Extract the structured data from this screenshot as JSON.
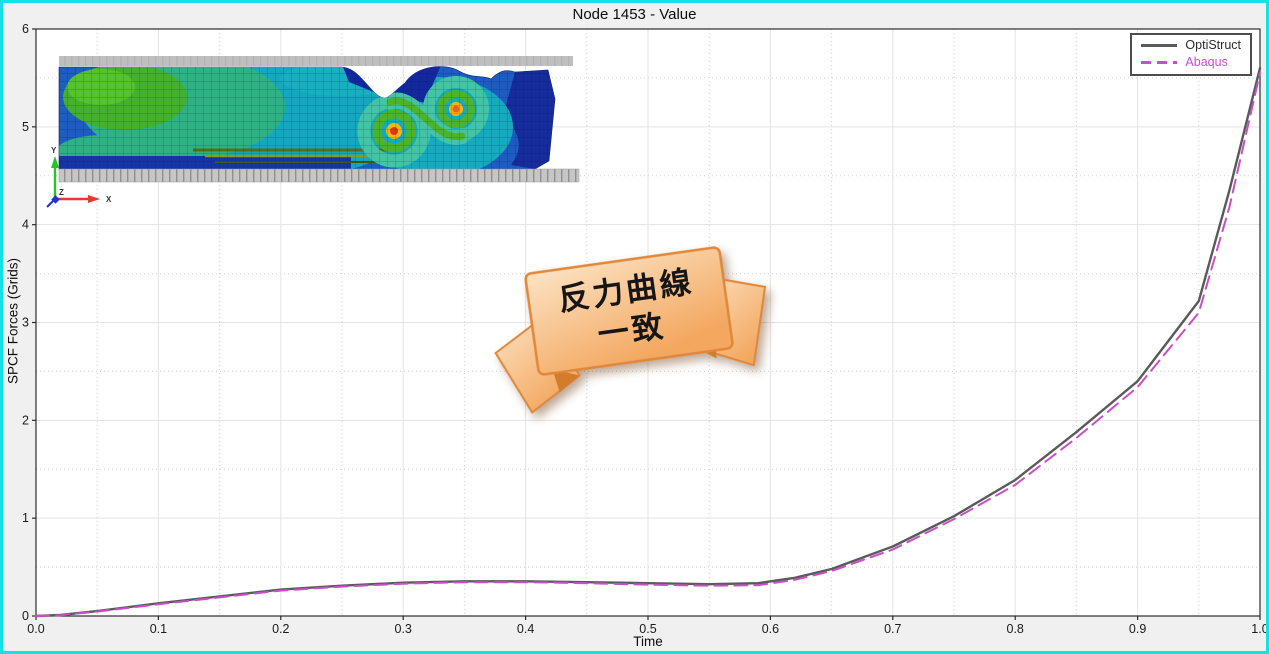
{
  "app": {
    "frame_border_color": "#0fe3e3",
    "margin_background": "#f0f0f0",
    "plot_background": "#ffffff"
  },
  "chart_data": {
    "type": "line",
    "title": "Node 1453 - Value",
    "xlabel": "Time",
    "ylabel": "SPCF Forces (Grids)",
    "xlim": [
      0.0,
      1.0
    ],
    "ylim": [
      0,
      6
    ],
    "xticks": [
      "0.0",
      "0.1",
      "0.2",
      "0.3",
      "0.4",
      "0.5",
      "0.6",
      "0.7",
      "0.8",
      "0.9",
      "1.0"
    ],
    "yticks": [
      "0",
      "1",
      "2",
      "3",
      "4",
      "5",
      "6"
    ],
    "x_minor_step": 0.05,
    "y_minor_step": 0.5,
    "grid": {
      "major_color": "#e3e3e3",
      "minor_color": "#cfcfcf",
      "minor_style": "dotted"
    },
    "legend_position": "top-right",
    "series": [
      {
        "name": "OptiStruct",
        "color": "#5a5a5a",
        "style": "solid",
        "width": 2.4,
        "legend_text_color": "#2b2b2b",
        "x": [
          0,
          0.02,
          0.05,
          0.1,
          0.15,
          0.2,
          0.25,
          0.3,
          0.35,
          0.4,
          0.45,
          0.5,
          0.55,
          0.59,
          0.62,
          0.65,
          0.7,
          0.75,
          0.8,
          0.85,
          0.9,
          0.95,
          0.975,
          1.0
        ],
        "y": [
          0,
          0.01,
          0.05,
          0.13,
          0.2,
          0.27,
          0.31,
          0.34,
          0.355,
          0.355,
          0.345,
          0.335,
          0.325,
          0.335,
          0.39,
          0.48,
          0.71,
          1.02,
          1.39,
          1.88,
          2.4,
          3.22,
          4.35,
          5.6
        ]
      },
      {
        "name": "Abaqus",
        "color": "#c94fc9",
        "style": "dashed",
        "width": 2.0,
        "legend_text_color": "#c94fc9",
        "x": [
          0,
          0.02,
          0.05,
          0.1,
          0.15,
          0.2,
          0.25,
          0.3,
          0.35,
          0.4,
          0.45,
          0.5,
          0.55,
          0.59,
          0.62,
          0.65,
          0.7,
          0.75,
          0.8,
          0.85,
          0.9,
          0.95,
          0.975,
          1.0
        ],
        "y": [
          0,
          0.008,
          0.045,
          0.12,
          0.19,
          0.26,
          0.3,
          0.33,
          0.345,
          0.345,
          0.335,
          0.32,
          0.31,
          0.315,
          0.37,
          0.46,
          0.68,
          0.99,
          1.34,
          1.82,
          2.34,
          3.1,
          4.18,
          5.55
        ]
      }
    ]
  },
  "banner": {
    "text_line1": "反力曲線",
    "text_line2": "一致",
    "fill_light": "#fce3c4",
    "fill_dark": "#f3a75f",
    "border_color": "#e0873a"
  },
  "inset": {
    "label": "FEA deformed mesh contour with S-shaped fold between rigid walls",
    "axis_triad": {
      "x": "X",
      "y": "Y",
      "z": "Z"
    }
  }
}
